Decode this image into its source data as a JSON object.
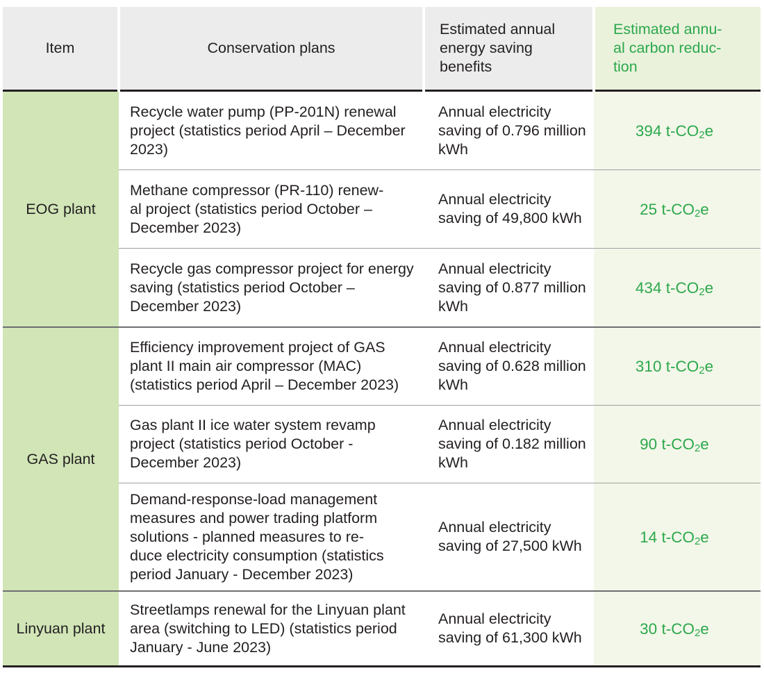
{
  "headers": {
    "item": "Item",
    "plans": "Conservation plans",
    "benefits": "Estimated annual energy saving benefits",
    "carbon": "Estimated annu-\nal carbon reduc-\ntion"
  },
  "groups": [
    {
      "item": "EOG plant"
    },
    {
      "item": "GAS plant"
    },
    {
      "item": "Linyuan plant"
    }
  ],
  "rows": [
    {
      "plan": "Recycle water pump (PP-201N) renewal project (statistics period April – December 2023)",
      "benefit": "Annual electricity saving of 0.796 million kWh",
      "carbon_value": "394 t-CO",
      "carbon_sub": "2",
      "carbon_suffix": "e"
    },
    {
      "plan": "Methane compressor (PR-110) renew-\nal project (statistics period October – December 2023)",
      "benefit": "Annual electricity saving of 49,800 kWh",
      "carbon_value": "25 t-CO",
      "carbon_sub": "2",
      "carbon_suffix": "e"
    },
    {
      "plan": "Recycle gas compressor project for energy saving (statistics period October – December 2023)",
      "benefit": "Annual electricity saving of 0.877 million kWh",
      "carbon_value": "434 t-CO",
      "carbon_sub": "2",
      "carbon_suffix": "e"
    },
    {
      "plan": "Efficiency improvement project of GAS plant II main air compressor (MAC) (statistics period April – December 2023)",
      "benefit": "Annual electricity saving of 0.628 million kWh",
      "carbon_value": "310 t-CO",
      "carbon_sub": "2",
      "carbon_suffix": "e"
    },
    {
      "plan": "Gas plant II ice water system revamp project (statistics period October - December 2023)",
      "benefit": "Annual electricity saving of 0.182 million kWh",
      "carbon_value": "90 t-CO",
      "carbon_sub": "2",
      "carbon_suffix": "e"
    },
    {
      "plan": "Demand-response-load management measures and power trading platform solutions - planned measures to re-\nduce electricity consumption (statistics period January - December 2023)",
      "benefit": "Annual electricity saving of 27,500 kWh",
      "carbon_value": "14 t-CO",
      "carbon_sub": "2",
      "carbon_suffix": "e"
    },
    {
      "plan": "Streetlamps renewal for the Linyuan plant area (switching to LED) (statistics period January - June 2023)",
      "benefit": "Annual electricity saving of 61,300 kWh",
      "carbon_value": "30 t-CO",
      "carbon_sub": "2",
      "carbon_suffix": "e"
    }
  ],
  "colors": {
    "header_bg": "#ececec",
    "item_bg": "#d1e5b7",
    "carbon_header_bg": "#eaf2dc",
    "carbon_cell_bg": "#f3f7e9",
    "carbon_text": "#2ca84c"
  }
}
